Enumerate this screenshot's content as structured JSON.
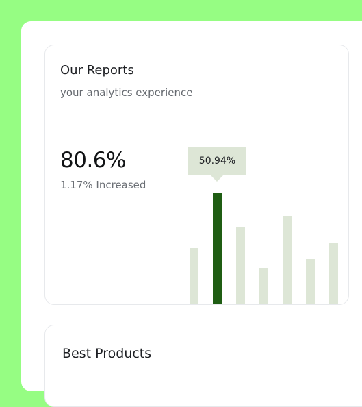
{
  "reports": {
    "title": "Our Reports",
    "subtitle": "your analytics experience",
    "value": "80.6%",
    "change": "1.17% Increased",
    "tooltip": "50.94%"
  },
  "products": {
    "title": "Best Products"
  },
  "colors": {
    "background_accent": "#96fd83",
    "bar": "#dde6d6",
    "bar_highlight": "#1f5d13"
  },
  "chart_data": {
    "type": "bar",
    "values": [
      86,
      166,
      117,
      57,
      133,
      70,
      94
    ],
    "highlight_index": 1,
    "highlight_label": "50.94%",
    "grid": false,
    "legend": "none"
  }
}
